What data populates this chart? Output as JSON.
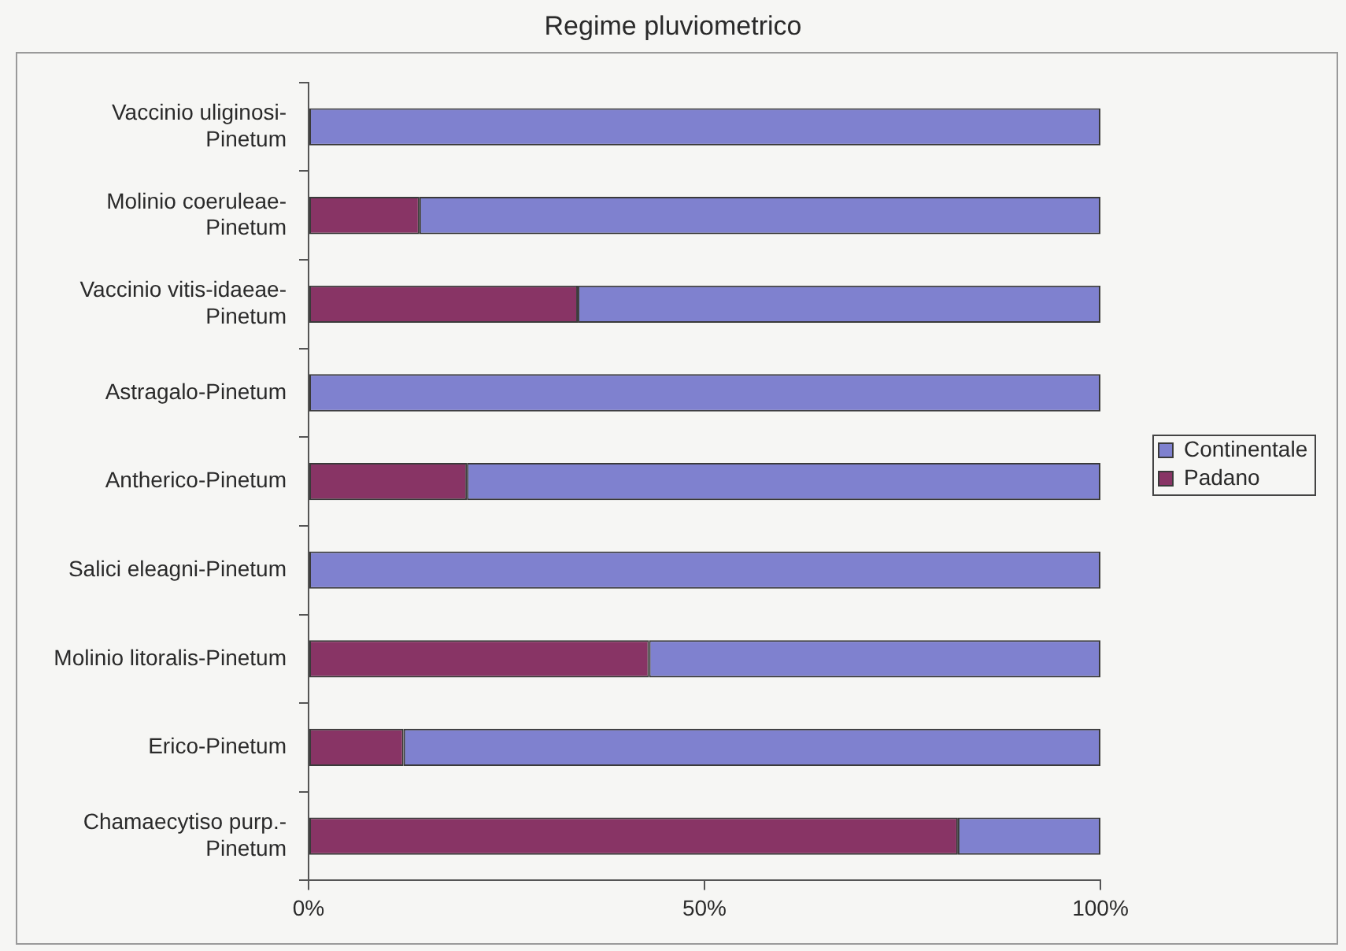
{
  "chart_data": {
    "type": "bar",
    "title": "Regime pluviometrico",
    "orientation": "horizontal",
    "stacked": true,
    "legend": "right",
    "categories": [
      "Vaccinio uliginosi-Pinetum",
      "Molinio coeruleae-Pinetum",
      "Vaccinio vitis-idaeae-Pinetum",
      "Astragalo-Pinetum",
      "Antherico-Pinetum",
      "Salici eleagni-Pinetum",
      "Molinio litoralis-Pinetum",
      "Erico-Pinetum",
      "Chamaecytiso purp.-Pinetum"
    ],
    "series": [
      {
        "name": "Padano",
        "color": "#883465",
        "values": [
          0,
          14,
          34,
          0,
          20,
          0,
          43,
          12,
          82
        ]
      },
      {
        "name": "Continentale",
        "color": "#7f81cf",
        "values": [
          100,
          86,
          66,
          100,
          80,
          100,
          57,
          88,
          18
        ]
      }
    ],
    "xlim": [
      0,
      100
    ],
    "xticks": [
      {
        "value": 0,
        "label": "0%"
      },
      {
        "value": 50,
        "label": "50%"
      },
      {
        "value": 100,
        "label": "100%"
      }
    ]
  }
}
